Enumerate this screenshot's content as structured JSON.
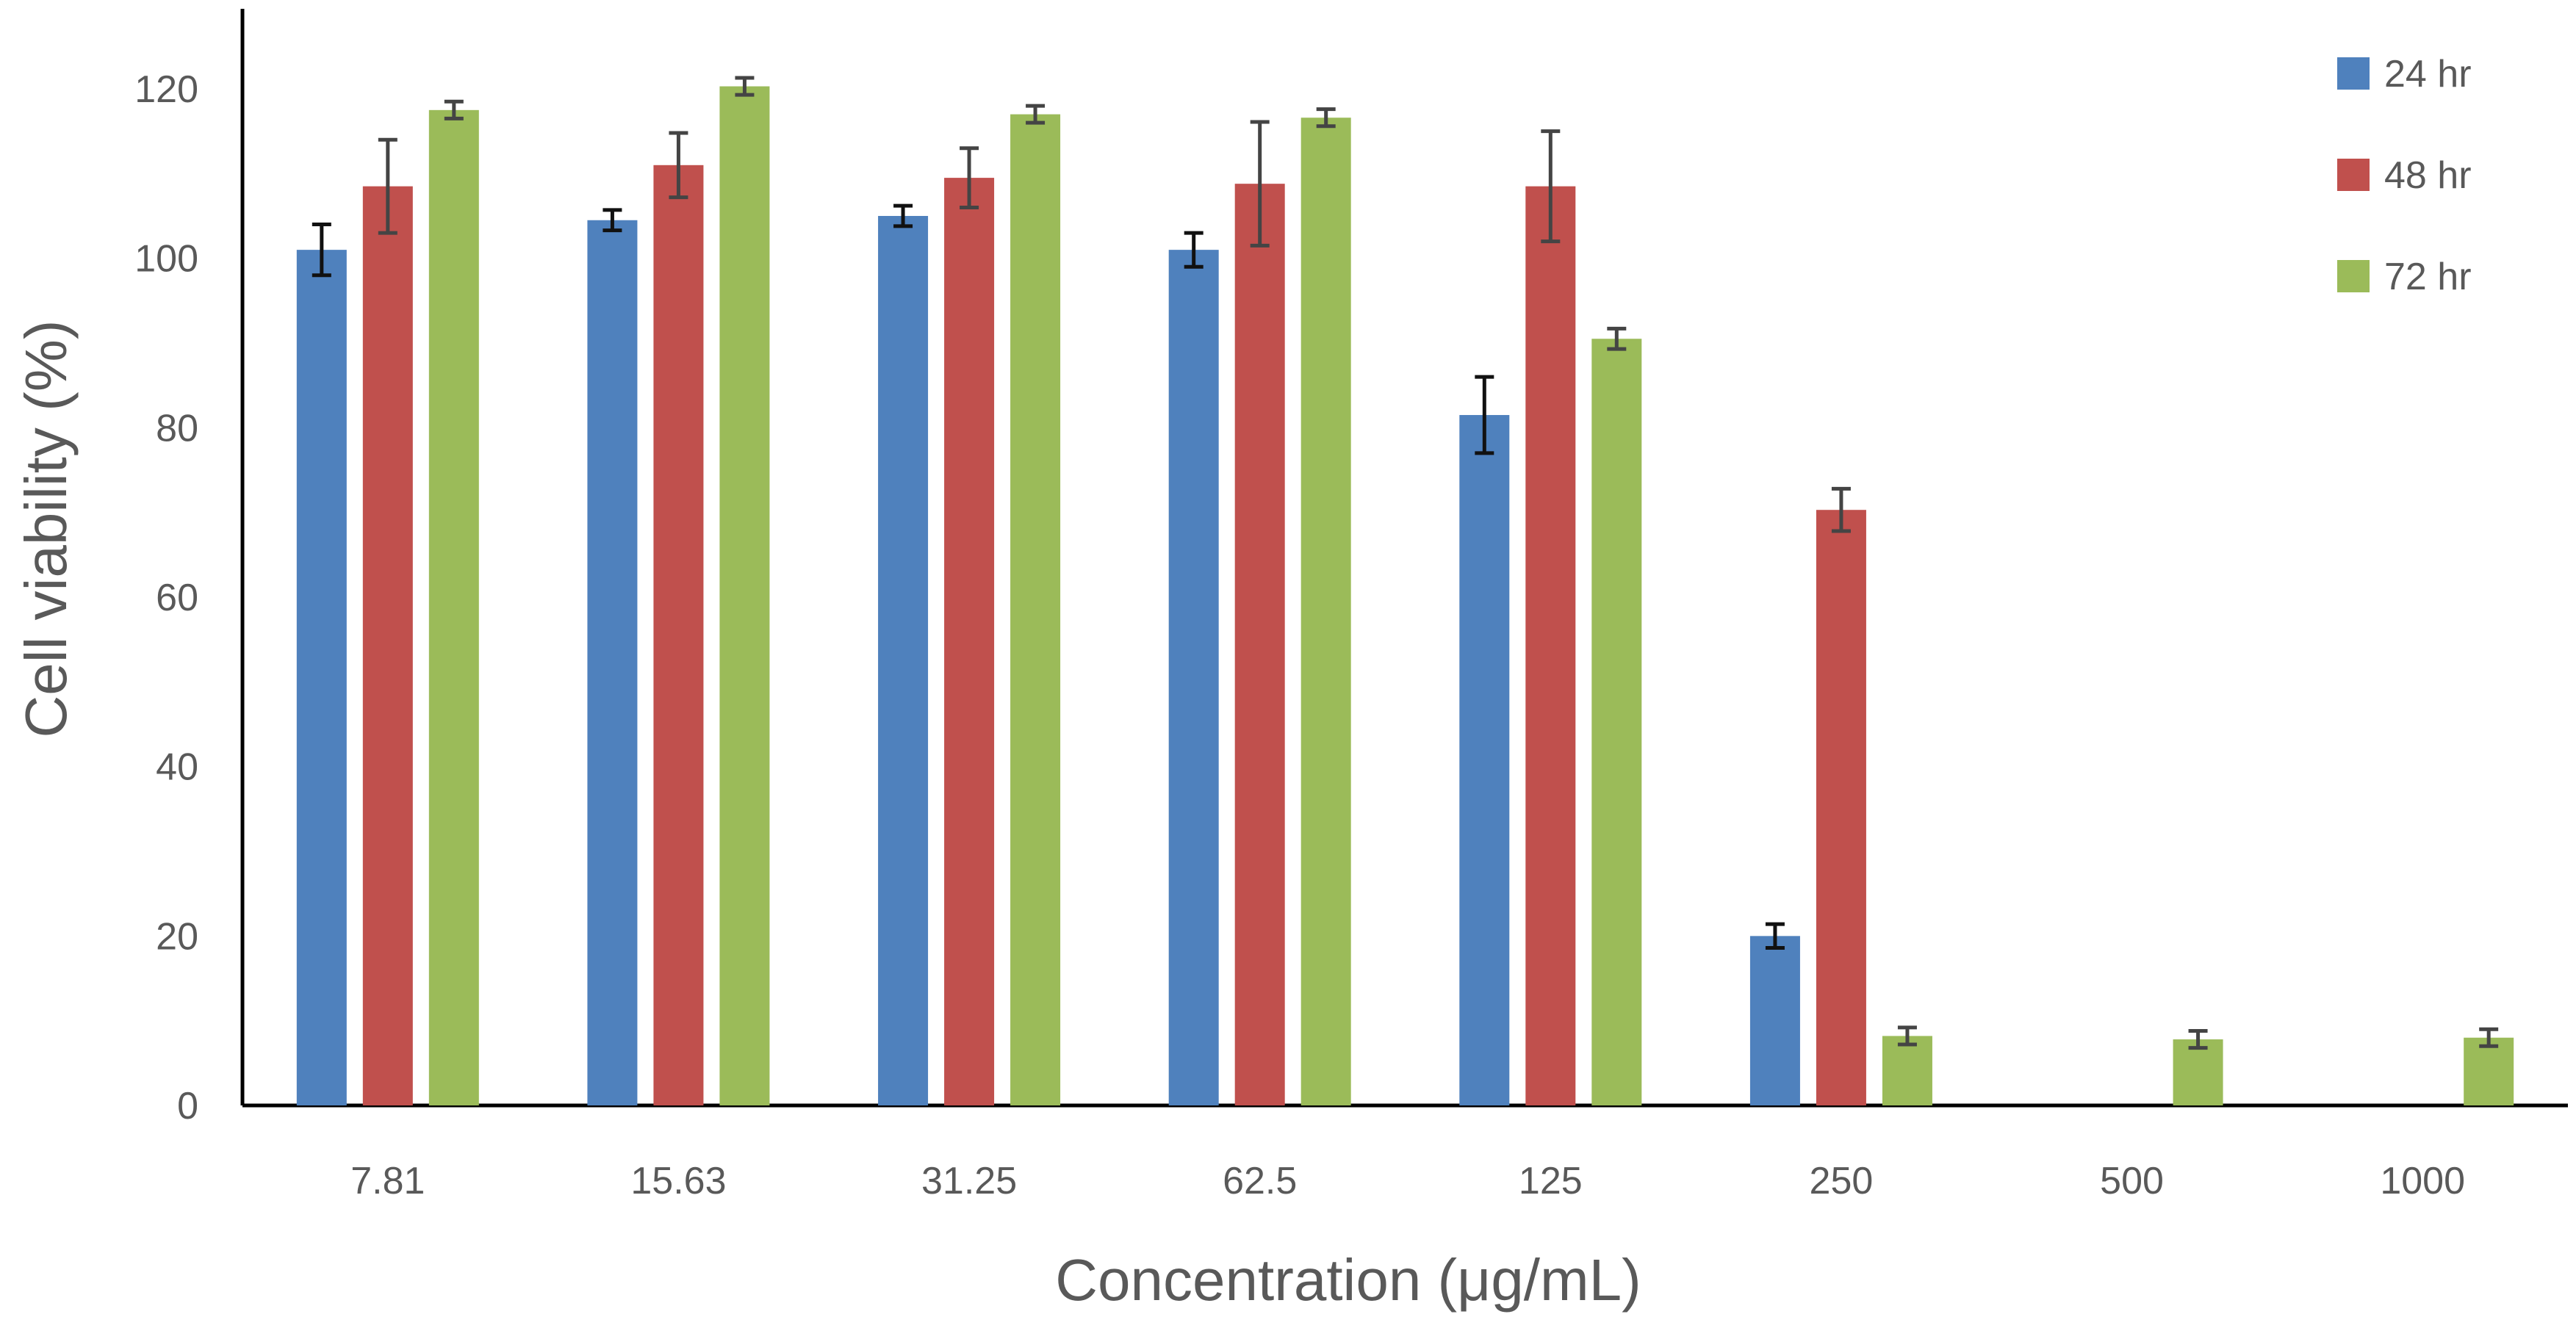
{
  "chart_data": {
    "type": "bar",
    "title": "",
    "xlabel": "Concentration (μg/mL)",
    "ylabel": "Cell viability (%)",
    "categories": [
      "7.81",
      "15.63",
      "31.25",
      "62.5",
      "125",
      "250",
      "500",
      "1000"
    ],
    "ylim": [
      0,
      130
    ],
    "yticks": [
      0,
      20,
      40,
      60,
      80,
      100,
      120
    ],
    "grid": false,
    "legend_position": "top-right",
    "series": [
      {
        "name": "24 hr",
        "color": "#4f81bd",
        "values": [
          101,
          104.5,
          105,
          101,
          81.5,
          20,
          null,
          null
        ],
        "errors": [
          3.0,
          1.2,
          1.2,
          2.0,
          4.5,
          1.4,
          null,
          null
        ]
      },
      {
        "name": "48 hr",
        "color": "#c0504d",
        "values": [
          108.5,
          111,
          109.5,
          108.8,
          108.5,
          70.3,
          null,
          null
        ],
        "errors": [
          5.5,
          3.8,
          3.5,
          7.3,
          6.5,
          2.5,
          null,
          null
        ]
      },
      {
        "name": "72 hr",
        "color": "#9bbb59",
        "values": [
          117.5,
          120.3,
          117,
          116.6,
          90.5,
          8.2,
          7.8,
          8.0
        ],
        "errors": [
          1.0,
          1.0,
          1.0,
          1.0,
          1.2,
          1.0,
          1.0,
          1.0
        ]
      }
    ]
  }
}
